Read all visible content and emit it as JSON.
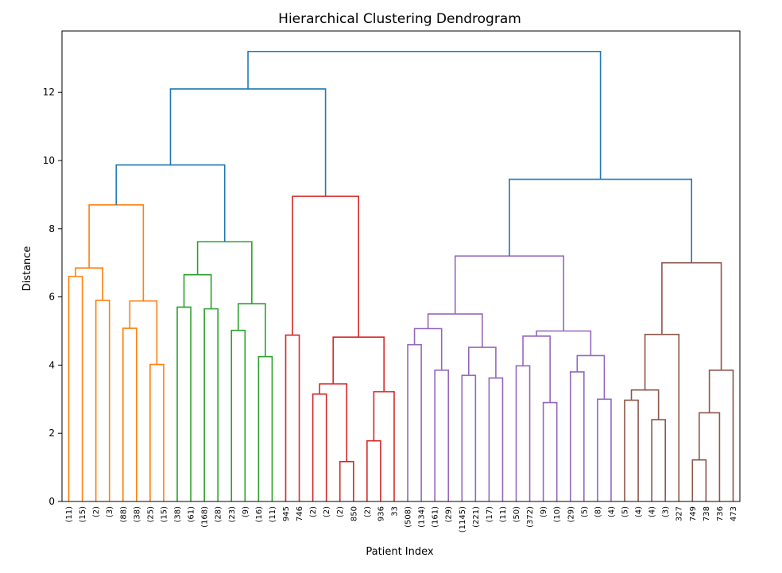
{
  "chart_data": {
    "type": "dendrogram",
    "title": "Hierarchical Clustering Dendrogram",
    "xlabel": "Patient Index",
    "ylabel": "Distance",
    "ylim": [
      0,
      13.8
    ],
    "yticks": [
      0,
      2,
      4,
      6,
      8,
      10,
      12
    ],
    "grid": false,
    "leaf_labels": [
      "(11)",
      "(15)",
      "(2)",
      "(3)",
      "(88)",
      "(38)",
      "(25)",
      "(15)",
      "(38)",
      "(61)",
      "(168)",
      "(28)",
      "(23)",
      "(9)",
      "(16)",
      "(11)",
      "945",
      "746",
      "(2)",
      "(2)",
      "(2)",
      "850",
      "(2)",
      "936",
      "33",
      "(508)",
      "(134)",
      "(161)",
      "(29)",
      "(1145)",
      "(221)",
      "(17)",
      "(11)",
      "(50)",
      "(372)",
      "(9)",
      "(10)",
      "(29)",
      "(5)",
      "(8)",
      "(4)",
      "(5)",
      "(4)",
      "(4)",
      "(3)",
      "327",
      "749",
      "738",
      "736",
      "473"
    ],
    "cluster_colors": {
      "above": "#1f77b4",
      "orange": "#ff7f0e",
      "green": "#2ca02c",
      "red": "#d62728",
      "purple": "#9467bd",
      "brown": "#8c564b"
    },
    "links": [
      {
        "a": 0,
        "b": 1,
        "h": 6.6,
        "c": "orange"
      },
      {
        "a": 2,
        "b": 3,
        "h": 5.9,
        "c": "orange"
      },
      {
        "a": "L0",
        "b": "L1",
        "h": 6.85,
        "c": "orange"
      },
      {
        "a": 4,
        "b": 5,
        "h": 5.08,
        "c": "orange"
      },
      {
        "a": 6,
        "b": 7,
        "h": 4.02,
        "c": "orange"
      },
      {
        "a": "L3",
        "b": "L4",
        "h": 5.88,
        "c": "orange"
      },
      {
        "a": "L2",
        "b": "L5",
        "h": 8.7,
        "c": "orange"
      },
      {
        "a": 8,
        "b": 9,
        "h": 5.7,
        "c": "green"
      },
      {
        "a": 10,
        "b": 11,
        "h": 5.65,
        "c": "green"
      },
      {
        "a": "L7",
        "b": "L8",
        "h": 6.65,
        "c": "green"
      },
      {
        "a": 12,
        "b": 13,
        "h": 5.02,
        "c": "green"
      },
      {
        "a": 14,
        "b": 15,
        "h": 4.25,
        "c": "green"
      },
      {
        "a": "L10",
        "b": "L11",
        "h": 5.8,
        "c": "green"
      },
      {
        "a": "L9",
        "b": "L12",
        "h": 7.62,
        "c": "green"
      },
      {
        "a": "L6",
        "b": "L13",
        "h": 9.87,
        "c": "above"
      },
      {
        "a": 16,
        "b": 17,
        "h": 4.88,
        "c": "red"
      },
      {
        "a": 18,
        "b": 19,
        "h": 3.15,
        "c": "red"
      },
      {
        "a": 20,
        "b": 21,
        "h": 1.17,
        "c": "red"
      },
      {
        "a": "L16",
        "b": "L17",
        "h": 3.45,
        "c": "red"
      },
      {
        "a": 22,
        "b": 23,
        "h": 1.78,
        "c": "red"
      },
      {
        "a": "L19",
        "b": 24,
        "h": 3.22,
        "c": "red"
      },
      {
        "a": "L18",
        "b": "L20",
        "h": 4.82,
        "c": "red"
      },
      {
        "a": "L15",
        "b": "L21",
        "h": 8.95,
        "c": "red"
      },
      {
        "a": "L14",
        "b": "L22",
        "h": 12.1,
        "c": "above"
      },
      {
        "a": 25,
        "b": 26,
        "h": 4.6,
        "c": "purple"
      },
      {
        "a": 27,
        "b": 28,
        "h": 3.85,
        "c": "purple"
      },
      {
        "a": "L24",
        "b": "L25",
        "h": 5.07,
        "c": "purple"
      },
      {
        "a": 29,
        "b": 30,
        "h": 3.7,
        "c": "purple"
      },
      {
        "a": 31,
        "b": 32,
        "h": 3.62,
        "c": "purple"
      },
      {
        "a": "L27",
        "b": "L28",
        "h": 4.52,
        "c": "purple"
      },
      {
        "a": "L26",
        "b": "L29",
        "h": 5.5,
        "c": "purple"
      },
      {
        "a": 33,
        "b": 34,
        "h": 3.98,
        "c": "purple"
      },
      {
        "a": 35,
        "b": 36,
        "h": 2.9,
        "c": "purple"
      },
      {
        "a": "L31",
        "b": "L32",
        "h": 4.85,
        "c": "purple"
      },
      {
        "a": 37,
        "b": 38,
        "h": 3.8,
        "c": "purple"
      },
      {
        "a": 39,
        "b": 40,
        "h": 3.0,
        "c": "purple"
      },
      {
        "a": "L34",
        "b": "L35",
        "h": 4.28,
        "c": "purple"
      },
      {
        "a": "L33",
        "b": "L36",
        "h": 5.0,
        "c": "purple"
      },
      {
        "a": "L30",
        "b": "L37",
        "h": 7.2,
        "c": "purple"
      },
      {
        "a": 41,
        "b": 42,
        "h": 2.97,
        "c": "brown"
      },
      {
        "a": 43,
        "b": 44,
        "h": 2.4,
        "c": "brown"
      },
      {
        "a": "L39",
        "b": "L40",
        "h": 3.27,
        "c": "brown"
      },
      {
        "a": "L41",
        "b": 45,
        "h": 4.9,
        "c": "brown"
      },
      {
        "a": 46,
        "b": 47,
        "h": 1.22,
        "c": "brown"
      },
      {
        "a": "L43",
        "b": 48,
        "h": 2.6,
        "c": "brown"
      },
      {
        "a": "L44",
        "b": 49,
        "h": 3.85,
        "c": "brown"
      },
      {
        "a": "L42",
        "b": "L45",
        "h": 7.0,
        "c": "brown"
      },
      {
        "a": "L38",
        "b": "L46",
        "h": 9.45,
        "c": "above"
      },
      {
        "a": "L23",
        "b": "L47",
        "h": 13.2,
        "c": "above"
      }
    ]
  }
}
